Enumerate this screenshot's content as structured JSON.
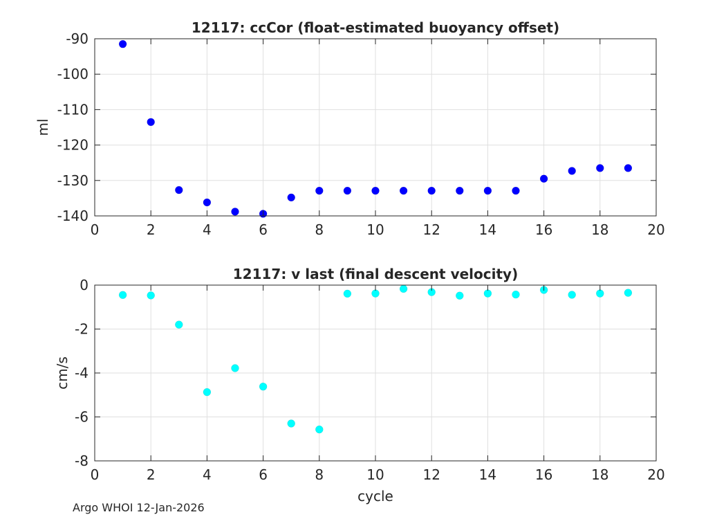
{
  "footer": "Argo WHOI 12-Jan-2026",
  "chart_data": [
    {
      "type": "scatter",
      "title": "12117: ccCor (float-estimated buoyancy offset)",
      "xlabel": "",
      "ylabel": "ml",
      "xlim": [
        0,
        20
      ],
      "ylim": [
        -140,
        -90
      ],
      "xticks": [
        "0",
        "2",
        "4",
        "6",
        "8",
        "10",
        "12",
        "14",
        "16",
        "18",
        "20"
      ],
      "yticks": [
        "-90",
        "-100",
        "-110",
        "-120",
        "-130",
        "-140"
      ],
      "grid": true,
      "marker_color": "#0000ff",
      "series": [
        {
          "x": [
            1,
            2,
            3,
            4,
            5,
            6,
            7,
            8,
            9,
            10,
            11,
            12,
            13,
            14,
            15,
            16,
            17,
            18,
            19
          ],
          "values": [
            -91.5,
            -113.5,
            -132.7,
            -136.2,
            -138.8,
            -139.4,
            -134.8,
            -132.9,
            -132.9,
            -132.9,
            -132.9,
            -132.9,
            -132.9,
            -132.9,
            -132.9,
            -129.5,
            -127.3,
            -126.5,
            -126.5
          ]
        }
      ]
    },
    {
      "type": "scatter",
      "title": "12117: v last (final descent velocity)",
      "xlabel": "cycle",
      "ylabel": "cm/s",
      "xlim": [
        0,
        20
      ],
      "ylim": [
        -8,
        0
      ],
      "xticks": [
        "0",
        "2",
        "4",
        "6",
        "8",
        "10",
        "12",
        "14",
        "16",
        "18",
        "20"
      ],
      "yticks": [
        "0",
        "-2",
        "-4",
        "-6",
        "-8"
      ],
      "grid": true,
      "marker_color": "#00ffff",
      "series": [
        {
          "x": [
            1,
            2,
            3,
            4,
            5,
            6,
            7,
            8,
            9,
            10,
            11,
            12,
            13,
            14,
            15,
            16,
            17,
            18,
            19
          ],
          "values": [
            -0.45,
            -0.47,
            -1.8,
            -4.87,
            -3.78,
            -4.62,
            -6.3,
            -6.57,
            -0.39,
            -0.38,
            -0.17,
            -0.32,
            -0.48,
            -0.38,
            -0.43,
            -0.22,
            -0.44,
            -0.38,
            -0.35
          ]
        }
      ]
    }
  ]
}
